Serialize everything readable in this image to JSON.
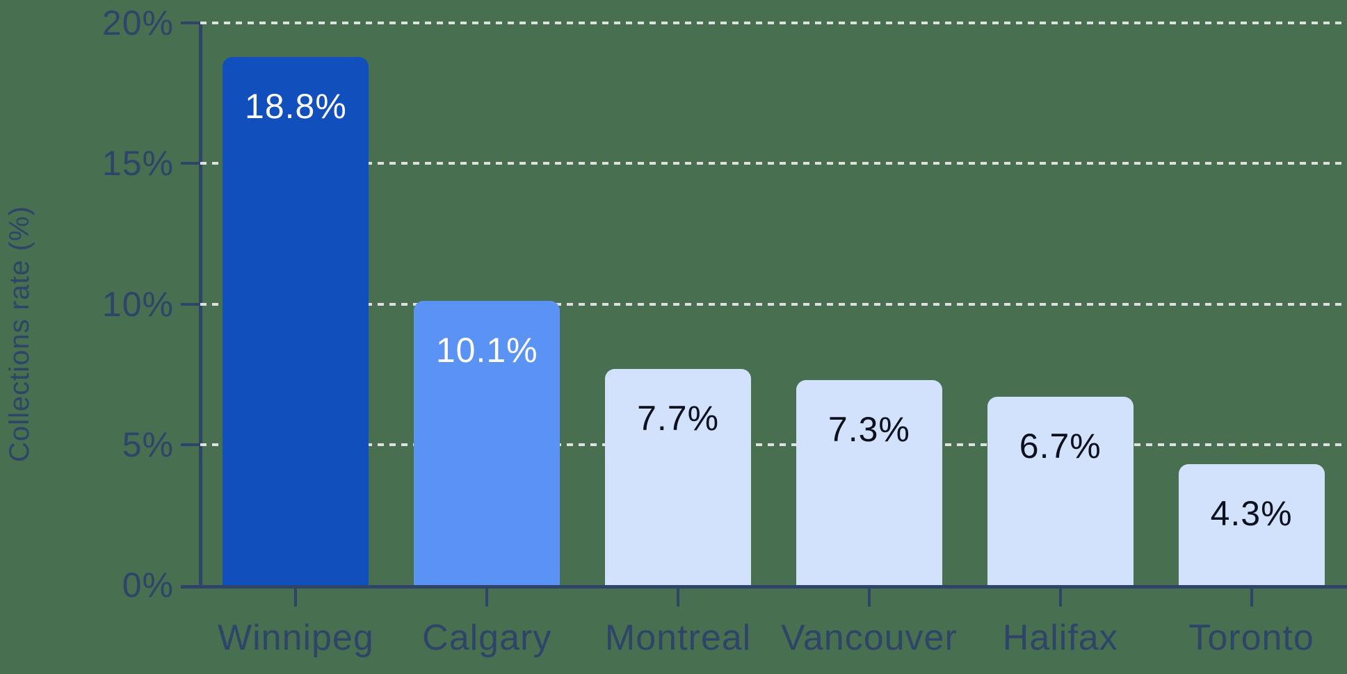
{
  "chart_data": {
    "type": "bar",
    "categories": [
      "Winnipeg",
      "Calgary",
      "Montreal",
      "Vancouver",
      "Halifax",
      "Toronto"
    ],
    "values": [
      18.8,
      10.1,
      7.7,
      7.3,
      6.7,
      4.3
    ],
    "value_labels": [
      "18.8%",
      "10.1%",
      "7.7%",
      "7.3%",
      "6.7%",
      "4.3%"
    ],
    "title": "",
    "xlabel": "",
    "ylabel": "Collections rate (%)",
    "ylim": [
      0,
      20
    ],
    "yticks": [
      0,
      5,
      10,
      15,
      20
    ],
    "ytick_labels": [
      "0%",
      "5%",
      "10%",
      "15%",
      "20%"
    ],
    "grid": "horizontal dashed lines at 5%, 10%, 15%, 20%",
    "legend_position": "none",
    "bar_colors": [
      "#1150bc",
      "#5b93f4",
      "#d3e2fc",
      "#d3e2fc",
      "#d3e2fc",
      "#d3e2fc"
    ],
    "value_label_colors": [
      "#ffffff",
      "#ffffff",
      "#0b101f",
      "#0b101f",
      "#0b101f",
      "#0b101f"
    ]
  },
  "colors": {
    "background": "#476f50",
    "axis": "#2e4468",
    "tick_text": "#2e4468",
    "gridline": "#dde2e1",
    "bar_dark_blue": "#1150bc",
    "bar_medium_blue": "#5b93f4",
    "bar_light_blue": "#d3e2fc",
    "label_on_dark_bar": "#ffffff",
    "label_on_light_bar": "#0b101f"
  }
}
